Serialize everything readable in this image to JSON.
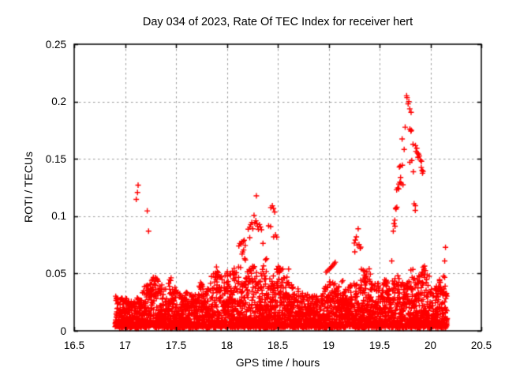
{
  "chart_data": {
    "type": "scatter",
    "title": "Day 034 of 2023, Rate Of TEC Index for receiver hert",
    "xlabel": "GPS time / hours",
    "ylabel": "ROTI / TECUs",
    "xlim": [
      16.5,
      20.5
    ],
    "ylim": [
      0,
      0.25
    ],
    "xticks": [
      16.5,
      17,
      17.5,
      18,
      18.5,
      19,
      19.5,
      20,
      20.5
    ],
    "xtick_labels": [
      "16.5",
      "17",
      "17.5",
      "18",
      "18.5",
      "19",
      "19.5",
      "20",
      "20.5"
    ],
    "yticks": [
      0,
      0.05,
      0.1,
      0.15,
      0.2,
      0.25
    ],
    "ytick_labels": [
      "0",
      "0.05",
      "0.1",
      "0.15",
      "0.2",
      "0.25"
    ],
    "grid": true,
    "grid_color": "#999999",
    "border_color": "#000000",
    "background_color": "#ffffff",
    "legend": null,
    "marker": {
      "symbol": "+",
      "color": "#ff0000",
      "size": 7
    },
    "series_name": "ROTI",
    "outlier_points": [
      [
        16.908,
        0.0302
      ],
      [
        16.917,
        0.0288
      ],
      [
        16.912,
        0.0265
      ],
      [
        17.128,
        0.1271
      ],
      [
        17.122,
        0.1207
      ],
      [
        17.11,
        0.1147
      ],
      [
        17.218,
        0.1046
      ],
      [
        17.231,
        0.087
      ],
      [
        17.262,
        0.0438
      ],
      [
        17.278,
        0.0452
      ],
      [
        17.296,
        0.0465
      ],
      [
        17.438,
        0.0445
      ],
      [
        17.452,
        0.0462
      ],
      [
        17.742,
        0.0421
      ],
      [
        17.752,
        0.0408
      ],
      [
        17.888,
        0.0503
      ],
      [
        17.898,
        0.0557
      ],
      [
        17.906,
        0.0492
      ],
      [
        17.915,
        0.0478
      ],
      [
        17.928,
        0.0466
      ],
      [
        17.945,
        0.0472
      ],
      [
        18.005,
        0.0515
      ],
      [
        18.032,
        0.0487
      ],
      [
        18.055,
        0.052
      ],
      [
        18.072,
        0.0545
      ],
      [
        18.09,
        0.0508
      ],
      [
        18.115,
        0.0557
      ],
      [
        18.135,
        0.0552
      ],
      [
        18.118,
        0.074
      ],
      [
        18.128,
        0.0762
      ],
      [
        18.14,
        0.0757
      ],
      [
        18.146,
        0.0775
      ],
      [
        18.155,
        0.0688
      ],
      [
        18.162,
        0.078
      ],
      [
        18.17,
        0.079
      ],
      [
        18.18,
        0.0745
      ],
      [
        18.15,
        0.067
      ],
      [
        18.165,
        0.0705
      ],
      [
        18.175,
        0.063
      ],
      [
        18.182,
        0.0618
      ],
      [
        18.225,
        0.0813
      ],
      [
        18.29,
        0.1178
      ],
      [
        18.21,
        0.0887
      ],
      [
        18.225,
        0.0905
      ],
      [
        18.235,
        0.0926
      ],
      [
        18.245,
        0.0946
      ],
      [
        18.255,
        0.089
      ],
      [
        18.267,
        0.1007
      ],
      [
        18.275,
        0.094
      ],
      [
        18.285,
        0.096
      ],
      [
        18.295,
        0.0935
      ],
      [
        18.302,
        0.0912
      ],
      [
        18.31,
        0.0885
      ],
      [
        18.32,
        0.0927
      ],
      [
        18.33,
        0.0906
      ],
      [
        18.34,
        0.0882
      ],
      [
        18.355,
        0.0763
      ],
      [
        18.36,
        0.0566
      ],
      [
        18.38,
        0.062
      ],
      [
        18.39,
        0.0628
      ],
      [
        18.41,
        0.0916
      ],
      [
        18.43,
        0.0909
      ],
      [
        18.432,
        0.1075
      ],
      [
        18.447,
        0.1091
      ],
      [
        18.458,
        0.1068
      ],
      [
        18.47,
        0.1037
      ],
      [
        18.46,
        0.082
      ],
      [
        18.478,
        0.0836
      ],
      [
        18.49,
        0.0818
      ],
      [
        18.49,
        0.054
      ],
      [
        18.505,
        0.0562
      ],
      [
        18.52,
        0.0548
      ],
      [
        18.55,
        0.0539
      ],
      [
        18.607,
        0.0539
      ],
      [
        18.27,
        0.056
      ],
      [
        18.35,
        0.0535
      ],
      [
        18.975,
        0.0512
      ],
      [
        18.99,
        0.0524
      ],
      [
        19.005,
        0.0536
      ],
      [
        19.018,
        0.0548
      ],
      [
        19.03,
        0.056
      ],
      [
        19.042,
        0.0572
      ],
      [
        19.055,
        0.0585
      ],
      [
        19.065,
        0.0598
      ],
      [
        19.05,
        0.04
      ],
      [
        19.13,
        0.0428
      ],
      [
        19.14,
        0.0438
      ],
      [
        19.29,
        0.089
      ],
      [
        19.272,
        0.082
      ],
      [
        19.262,
        0.0792
      ],
      [
        19.252,
        0.0765
      ],
      [
        19.28,
        0.0748
      ],
      [
        19.298,
        0.0752
      ],
      [
        19.31,
        0.0719
      ],
      [
        19.257,
        0.0689
      ],
      [
        19.315,
        0.073
      ],
      [
        19.322,
        0.0537
      ],
      [
        19.34,
        0.0528
      ],
      [
        19.357,
        0.052
      ],
      [
        19.375,
        0.0513
      ],
      [
        19.398,
        0.0541
      ],
      [
        19.41,
        0.0495
      ],
      [
        19.36,
        0.046
      ],
      [
        19.362,
        0.043
      ],
      [
        19.358,
        0.04
      ],
      [
        19.365,
        0.0368
      ],
      [
        19.4,
        0.045
      ],
      [
        19.42,
        0.0412
      ],
      [
        19.538,
        0.04
      ],
      [
        19.55,
        0.0445
      ],
      [
        19.56,
        0.043
      ],
      [
        19.572,
        0.0415
      ],
      [
        19.766,
        0.205
      ],
      [
        19.77,
        0.2034
      ],
      [
        19.788,
        0.2
      ],
      [
        19.781,
        0.198
      ],
      [
        19.797,
        0.1936
      ],
      [
        19.81,
        0.1906
      ],
      [
        19.752,
        0.1776
      ],
      [
        19.798,
        0.176
      ],
      [
        19.808,
        0.1742
      ],
      [
        19.812,
        0.1749
      ],
      [
        19.722,
        0.1674
      ],
      [
        19.742,
        0.1582
      ],
      [
        19.829,
        0.1627
      ],
      [
        19.853,
        0.1616
      ],
      [
        19.866,
        0.1593
      ],
      [
        19.858,
        0.1566
      ],
      [
        19.872,
        0.1552
      ],
      [
        19.883,
        0.1541
      ],
      [
        19.89,
        0.1525
      ],
      [
        19.878,
        0.1513
      ],
      [
        19.902,
        0.149
      ],
      [
        19.912,
        0.1479
      ],
      [
        19.817,
        0.1486
      ],
      [
        19.703,
        0.1438
      ],
      [
        19.724,
        0.1445
      ],
      [
        19.695,
        0.1429
      ],
      [
        19.798,
        0.147
      ],
      [
        19.91,
        0.1425
      ],
      [
        19.918,
        0.14
      ],
      [
        19.928,
        0.139
      ],
      [
        19.922,
        0.1375
      ],
      [
        19.832,
        0.1388
      ],
      [
        19.707,
        0.1338
      ],
      [
        19.69,
        0.128
      ],
      [
        19.7,
        0.1296
      ],
      [
        19.712,
        0.1287
      ],
      [
        19.73,
        0.1274
      ],
      [
        19.668,
        0.123
      ],
      [
        19.678,
        0.1246
      ],
      [
        19.688,
        0.1238
      ],
      [
        19.84,
        0.1108
      ],
      [
        19.852,
        0.1092
      ],
      [
        19.851,
        0.105
      ],
      [
        19.658,
        0.107
      ],
      [
        19.67,
        0.1078
      ],
      [
        19.662,
        0.1062
      ],
      [
        19.642,
        0.0935
      ],
      [
        19.65,
        0.0965
      ],
      [
        19.652,
        0.0913
      ],
      [
        19.635,
        0.087
      ],
      [
        19.62,
        0.061
      ],
      [
        19.68,
        0.048
      ],
      [
        19.708,
        0.0397
      ],
      [
        19.808,
        0.053
      ],
      [
        19.828,
        0.0535
      ],
      [
        19.82,
        0.0466
      ],
      [
        19.832,
        0.045
      ],
      [
        19.842,
        0.0458
      ],
      [
        19.928,
        0.0555
      ],
      [
        19.938,
        0.054
      ],
      [
        19.95,
        0.0525
      ],
      [
        19.942,
        0.0565
      ],
      [
        19.968,
        0.0488
      ],
      [
        19.988,
        0.0477
      ],
      [
        19.958,
        0.042
      ],
      [
        20.148,
        0.0728
      ],
      [
        20.14,
        0.061
      ],
      [
        20.128,
        0.0477
      ],
      [
        20.14,
        0.0466
      ],
      [
        20.05,
        0.035
      ],
      [
        20.07,
        0.036
      ],
      [
        20.09,
        0.0372
      ],
      [
        20.108,
        0.0345
      ],
      [
        20.122,
        0.0332
      ],
      [
        20.132,
        0.0365
      ],
      [
        20.158,
        0.0325
      ]
    ],
    "baseline_band": {
      "description": "dense noise band of + markers along bottom of plot",
      "x_start": 16.905,
      "x_end": 20.165,
      "x_step": 0.0026,
      "points_per_step": 3,
      "y_floor_min": 0.002,
      "y_floor_max": 0.005,
      "shape": 2.2,
      "seed": 1234567,
      "envelope": [
        [
          16.9,
          0.03
        ],
        [
          16.95,
          0.032
        ],
        [
          17.0,
          0.03
        ],
        [
          17.05,
          0.026
        ],
        [
          17.1,
          0.028
        ],
        [
          17.15,
          0.03
        ],
        [
          17.2,
          0.042
        ],
        [
          17.25,
          0.046
        ],
        [
          17.3,
          0.048
        ],
        [
          17.35,
          0.04
        ],
        [
          17.4,
          0.044
        ],
        [
          17.45,
          0.046
        ],
        [
          17.5,
          0.036
        ],
        [
          17.55,
          0.034
        ],
        [
          17.6,
          0.037
        ],
        [
          17.65,
          0.033
        ],
        [
          17.7,
          0.036
        ],
        [
          17.75,
          0.042
        ],
        [
          17.8,
          0.036
        ],
        [
          17.85,
          0.048
        ],
        [
          17.9,
          0.053
        ],
        [
          17.95,
          0.046
        ],
        [
          18.0,
          0.05
        ],
        [
          18.05,
          0.051
        ],
        [
          18.1,
          0.053
        ],
        [
          18.15,
          0.058
        ],
        [
          18.2,
          0.055
        ],
        [
          18.25,
          0.057
        ],
        [
          18.3,
          0.055
        ],
        [
          18.35,
          0.055
        ],
        [
          18.4,
          0.051
        ],
        [
          18.45,
          0.05
        ],
        [
          18.5,
          0.056
        ],
        [
          18.55,
          0.053
        ],
        [
          18.6,
          0.046
        ],
        [
          18.65,
          0.04
        ],
        [
          18.7,
          0.037
        ],
        [
          18.75,
          0.033
        ],
        [
          18.8,
          0.032
        ],
        [
          18.85,
          0.031
        ],
        [
          18.9,
          0.034
        ],
        [
          18.95,
          0.04
        ],
        [
          19.0,
          0.045
        ],
        [
          19.05,
          0.042
        ],
        [
          19.1,
          0.042
        ],
        [
          19.15,
          0.038
        ],
        [
          19.2,
          0.04
        ],
        [
          19.25,
          0.042
        ],
        [
          19.3,
          0.046
        ],
        [
          19.35,
          0.05
        ],
        [
          19.4,
          0.046
        ],
        [
          19.45,
          0.042
        ],
        [
          19.5,
          0.042
        ],
        [
          19.55,
          0.045
        ],
        [
          19.6,
          0.042
        ],
        [
          19.65,
          0.046
        ],
        [
          19.7,
          0.047
        ],
        [
          19.75,
          0.042
        ],
        [
          19.8,
          0.044
        ],
        [
          19.85,
          0.042
        ],
        [
          19.9,
          0.053
        ],
        [
          19.95,
          0.048
        ],
        [
          20.0,
          0.036
        ],
        [
          20.05,
          0.039
        ],
        [
          20.1,
          0.046
        ],
        [
          20.15,
          0.04
        ],
        [
          20.17,
          0.034
        ]
      ]
    }
  }
}
